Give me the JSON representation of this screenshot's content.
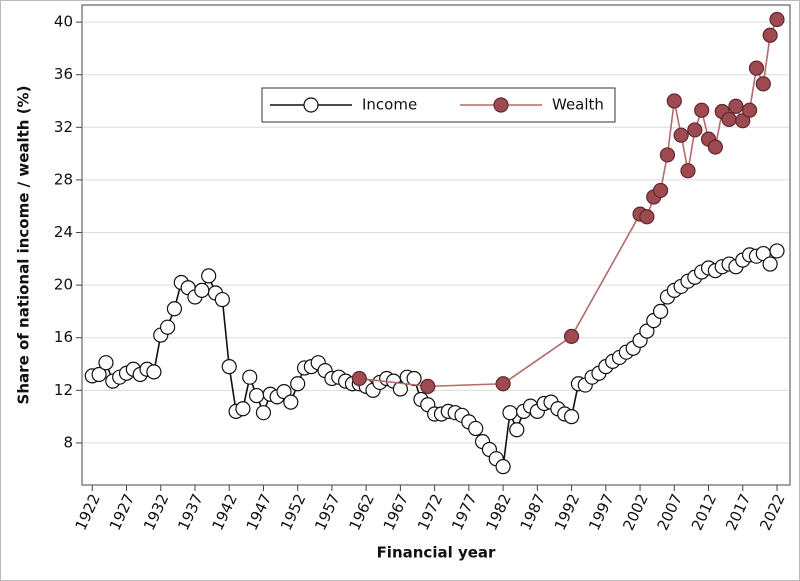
{
  "chart_data": {
    "type": "line",
    "xlabel": "Financial year",
    "ylabel": "Share of national income / wealth (%)",
    "xlim": [
      1920.5,
      2023.9
    ],
    "xticks": [
      1922,
      1927,
      1932,
      1937,
      1942,
      1947,
      1952,
      1957,
      1962,
      1967,
      1972,
      1977,
      1982,
      1987,
      1992,
      1997,
      2002,
      2007,
      2012,
      2017,
      2022
    ],
    "ylim": [
      4.8,
      41.3
    ],
    "yticks": [
      8,
      12,
      16,
      20,
      24,
      28,
      32,
      36,
      40
    ],
    "grid": true,
    "legend": "top",
    "series": [
      {
        "name": "Income",
        "color": "#111111",
        "marker_fill": "#ffffff",
        "x": [
          1922,
          1923,
          1924,
          1925,
          1926,
          1927,
          1928,
          1929,
          1930,
          1931,
          1932,
          1933,
          1934,
          1935,
          1936,
          1937,
          1938,
          1939,
          1940,
          1941,
          1942,
          1943,
          1944,
          1945,
          1946,
          1947,
          1948,
          1949,
          1950,
          1951,
          1952,
          1953,
          1954,
          1955,
          1956,
          1957,
          1958,
          1959,
          1960,
          1961,
          1962,
          1963,
          1964,
          1965,
          1966,
          1967,
          1968,
          1969,
          1970,
          1971,
          1972,
          1973,
          1974,
          1975,
          1976,
          1977,
          1978,
          1979,
          1980,
          1981,
          1982,
          1983,
          1984,
          1985,
          1986,
          1987,
          1988,
          1989,
          1990,
          1991,
          1992,
          1993,
          1994,
          1995,
          1996,
          1997,
          1998,
          1999,
          2000,
          2001,
          2002,
          2003,
          2004,
          2005,
          2006,
          2007,
          2008,
          2009,
          2010,
          2011,
          2012,
          2013,
          2014,
          2015,
          2016,
          2017,
          2018,
          2019,
          2020,
          2021,
          2022
        ],
        "values": [
          13.1,
          13.2,
          14.1,
          12.7,
          13.0,
          13.3,
          13.6,
          13.2,
          13.6,
          13.4,
          16.2,
          16.8,
          18.2,
          20.2,
          19.8,
          19.1,
          19.6,
          20.7,
          19.4,
          18.9,
          13.8,
          10.4,
          10.6,
          13.0,
          11.6,
          10.3,
          11.7,
          11.5,
          11.9,
          11.1,
          12.5,
          13.7,
          13.8,
          14.1,
          13.5,
          12.9,
          13.0,
          12.7,
          12.5,
          12.5,
          12.3,
          12.0,
          12.6,
          12.9,
          12.7,
          12.1,
          13.0,
          12.9,
          11.3,
          10.9,
          10.2,
          10.2,
          10.4,
          10.3,
          10.1,
          9.6,
          9.1,
          8.1,
          7.5,
          6.8,
          6.2,
          10.3,
          9.0,
          10.4,
          10.8,
          10.4,
          11.0,
          11.1,
          10.6,
          10.2,
          10.0,
          12.5,
          12.4,
          13.0,
          13.3,
          13.8,
          14.2,
          14.5,
          14.9,
          15.2,
          15.8,
          16.5,
          17.3,
          18.0,
          19.1,
          19.6,
          19.9,
          20.3,
          20.6,
          21.0,
          21.3,
          21.1,
          21.4,
          21.6,
          21.4,
          21.9,
          22.3,
          22.2,
          22.4,
          21.6,
          22.6
        ]
      },
      {
        "name": "Wealth",
        "color": "#b56a6c",
        "marker_fill": "#9e4a50",
        "x": [
          1961,
          1971,
          1982,
          1992,
          2002,
          2003,
          2004,
          2005,
          2006,
          2007,
          2008,
          2009,
          2010,
          2011,
          2012,
          2013,
          2014,
          2015,
          2016,
          2017,
          2018,
          2019,
          2020,
          2021,
          2022
        ],
        "values": [
          12.9,
          12.3,
          12.5,
          16.1,
          25.4,
          25.2,
          26.7,
          27.2,
          29.9,
          34.0,
          31.4,
          28.7,
          31.8,
          33.3,
          31.1,
          30.5,
          33.2,
          32.6,
          33.6,
          32.5,
          33.3,
          36.5,
          35.3,
          39.0,
          40.2
        ]
      }
    ]
  }
}
